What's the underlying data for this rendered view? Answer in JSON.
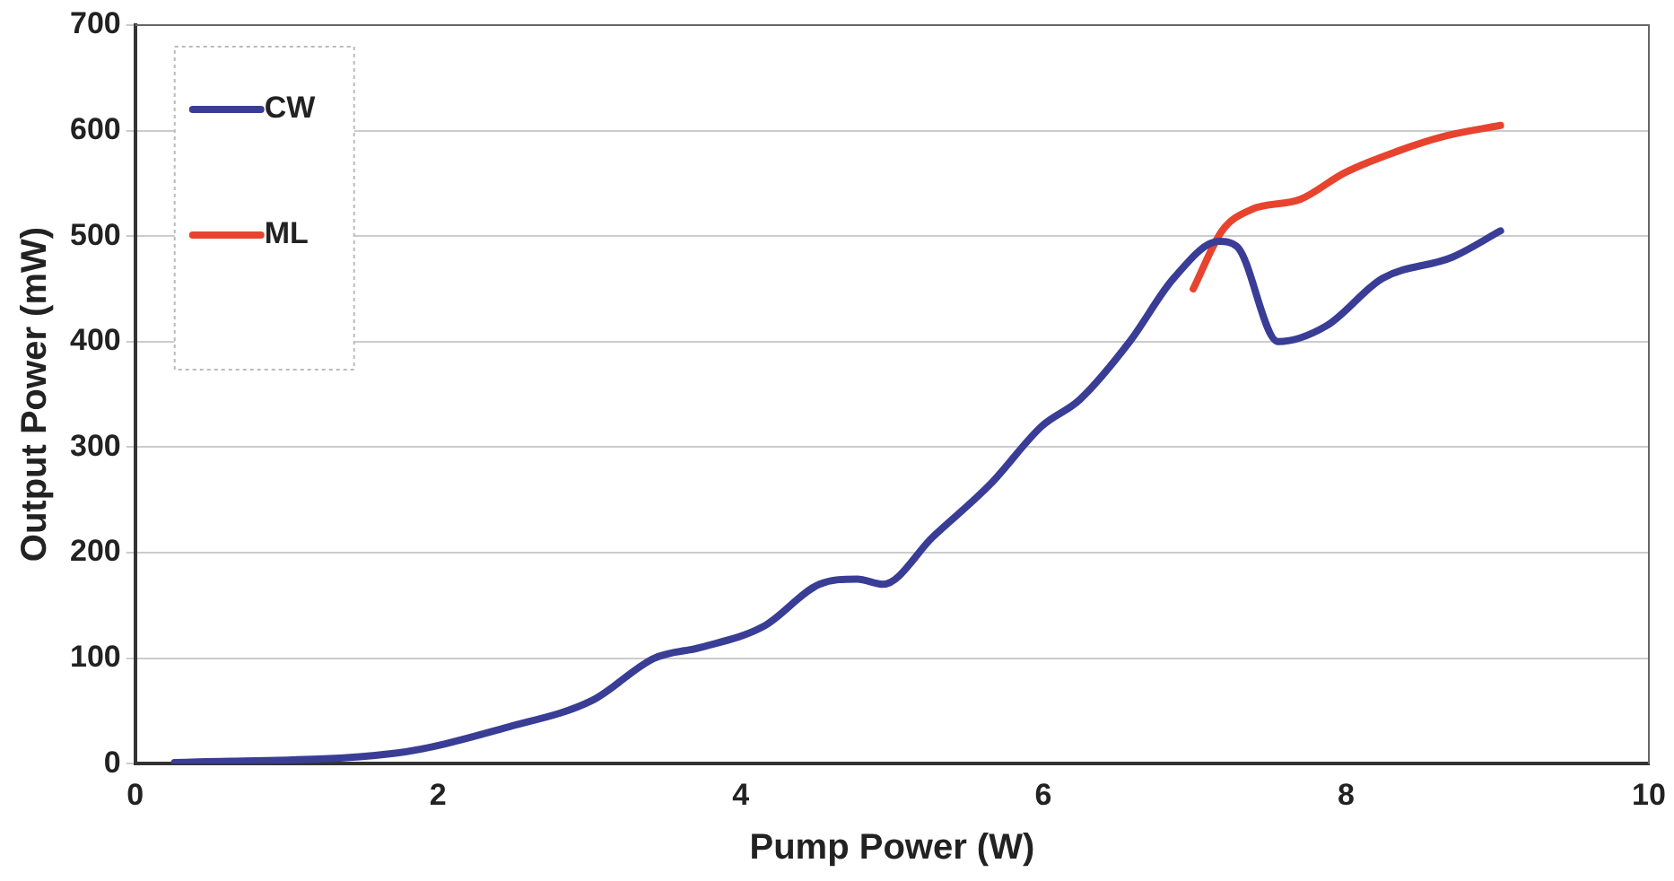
{
  "chart_data": {
    "type": "line",
    "xlabel": "Pump Power (W)",
    "ylabel": "Output Power (mW)",
    "xlim": [
      0,
      10
    ],
    "xticks": [
      0,
      2,
      4,
      6,
      8,
      10
    ],
    "ylim": [
      0,
      700
    ],
    "yticks": [
      0,
      100,
      200,
      300,
      400,
      500,
      600,
      700
    ],
    "grid": "y",
    "legend": "top left",
    "marker": "none",
    "line_style": "solid",
    "series": [
      {
        "name": "CW",
        "color": "#3a3d96",
        "x": [
          0.26,
          1.72,
          2.47,
          3.02,
          3.43,
          3.73,
          4.15,
          4.52,
          4.77,
          4.94,
          5.27,
          5.65,
          5.99,
          6.24,
          6.57,
          6.86,
          7.16,
          7.28,
          7.55,
          7.87,
          8.24,
          8.7,
          9.02
        ],
        "values": [
          1,
          10,
          35,
          60,
          100,
          110,
          130,
          170,
          175,
          170,
          215,
          265,
          320,
          345,
          400,
          460,
          495,
          490,
          400,
          415,
          460,
          480,
          505
        ]
      },
      {
        "name": "ML",
        "color": "#e8432e",
        "x": [
          6.99,
          7.18,
          7.37,
          7.7,
          7.99,
          8.33,
          8.66,
          9.02
        ],
        "values": [
          450,
          505,
          525,
          535,
          560,
          580,
          595,
          605
        ]
      }
    ]
  }
}
